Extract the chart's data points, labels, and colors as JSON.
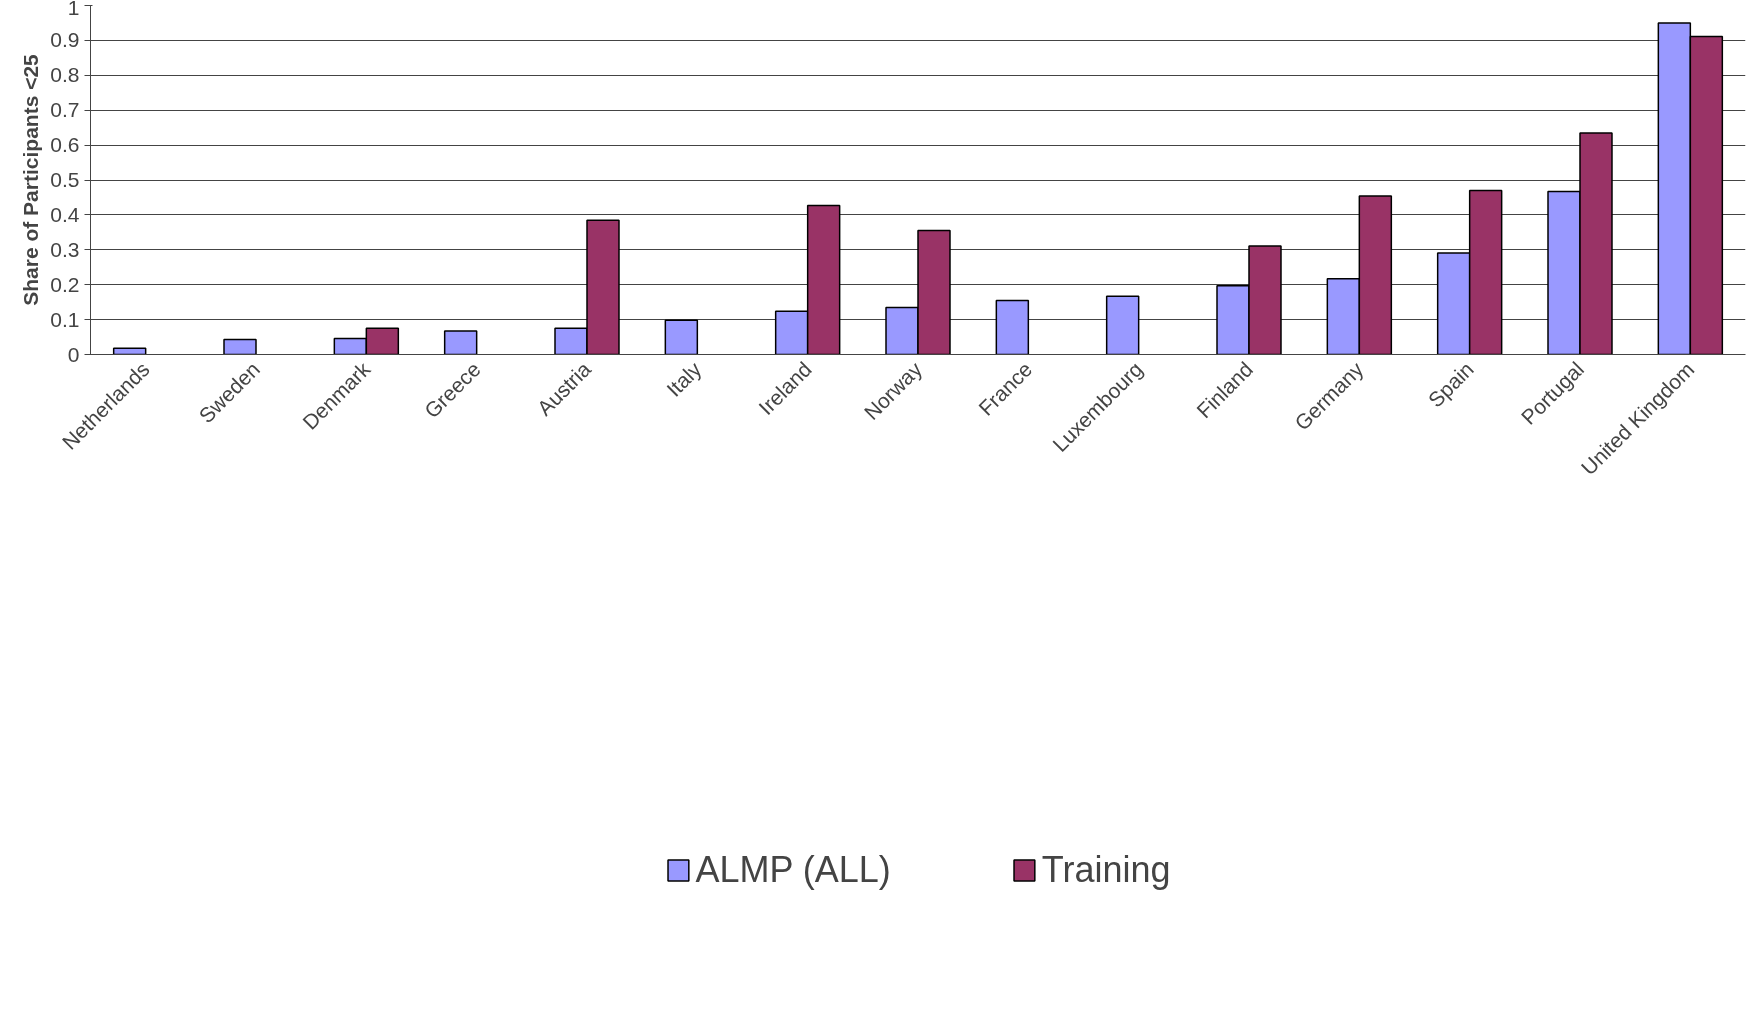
{
  "chart_data": {
    "type": "bar",
    "ylabel": "Share of Participants <25",
    "categories": [
      "Netherlands",
      "Sweden",
      "Denmark",
      "Greece",
      "Austria",
      "Italy",
      "Ireland",
      "Norway",
      "France",
      "Luxembourg",
      "Finland",
      "Germany",
      "Spain",
      "Portugal",
      "United Kingdom"
    ],
    "series": [
      {
        "name": "ALMP (ALL)",
        "color": "#9999ff",
        "values": [
          0.018,
          0.043,
          0.046,
          0.067,
          0.075,
          0.098,
          0.124,
          0.135,
          0.155,
          0.167,
          0.197,
          0.217,
          0.291,
          0.467,
          0.95
        ]
      },
      {
        "name": "Training",
        "color": "#993366",
        "values": [
          null,
          null,
          0.075,
          null,
          0.385,
          null,
          0.427,
          0.355,
          null,
          null,
          0.311,
          0.454,
          0.47,
          0.635,
          0.911
        ]
      }
    ],
    "ylim": [
      0,
      1
    ],
    "yticks": [
      0,
      0.1,
      0.2,
      0.3,
      0.4,
      0.5,
      0.6,
      0.7,
      0.8,
      0.9,
      1
    ],
    "grid": "y",
    "legend": "bottom"
  }
}
